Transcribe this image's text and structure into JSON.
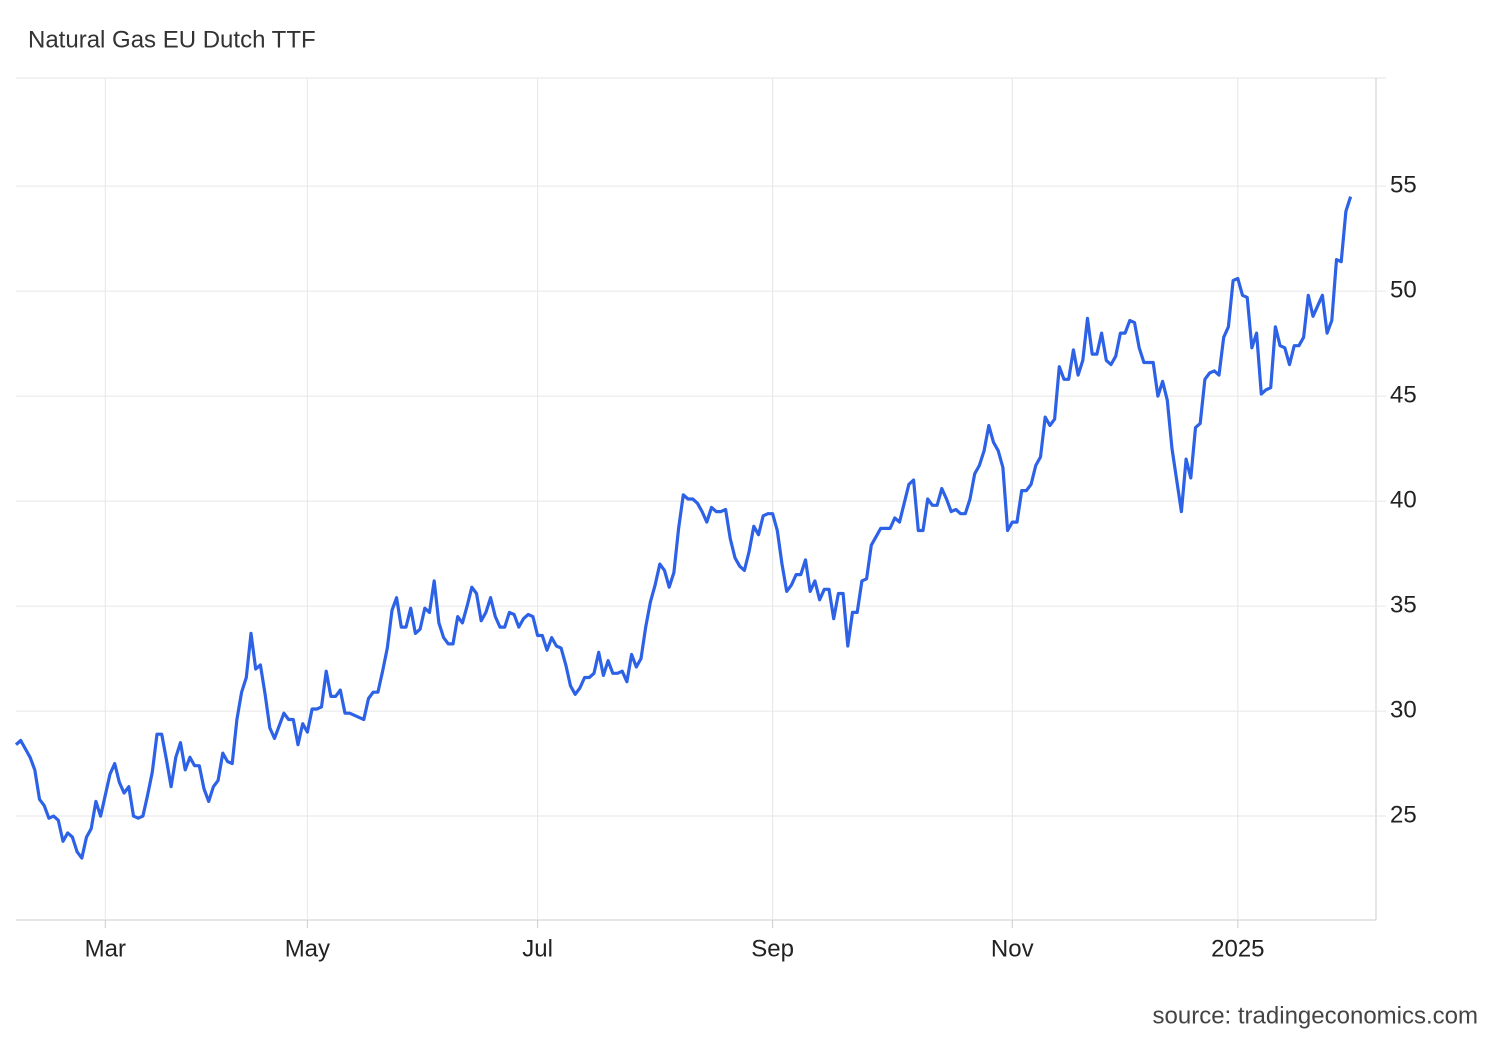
{
  "chart_data": {
    "type": "line",
    "title": "Natural Gas EU Dutch TTF",
    "source": "source: tradingeconomics.com",
    "series": [
      {
        "color": "#2d62e6",
        "values": [
          28.4,
          28.6,
          28.2,
          27.8,
          27.2,
          25.8,
          25.5,
          24.9,
          25.0,
          24.8,
          23.8,
          24.2,
          24.0,
          23.3,
          23.0,
          24.0,
          24.4,
          25.7,
          25.0,
          26.0,
          27.0,
          27.5,
          26.6,
          26.1,
          26.4,
          25.0,
          24.9,
          25.0,
          26.0,
          27.1,
          28.9,
          28.9,
          27.7,
          26.4,
          27.8,
          28.5,
          27.2,
          27.8,
          27.4,
          27.4,
          26.3,
          25.7,
          26.4,
          26.7,
          28.0,
          27.6,
          27.5,
          29.6,
          30.9,
          31.6,
          33.7,
          32.0,
          32.2,
          30.8,
          29.2,
          28.7,
          29.3,
          29.9,
          29.6,
          29.6,
          28.4,
          29.4,
          29.0,
          30.1,
          30.1,
          30.2,
          31.9,
          30.7,
          30.7,
          31.0,
          29.9,
          29.9,
          29.8,
          29.7,
          29.6,
          30.6,
          30.9,
          30.9,
          31.9,
          33.0,
          34.8,
          35.4,
          34.0,
          34.0,
          34.9,
          33.7,
          33.9,
          34.9,
          34.7,
          36.2,
          34.2,
          33.5,
          33.2,
          33.2,
          34.5,
          34.2,
          35.0,
          35.9,
          35.6,
          34.3,
          34.7,
          35.4,
          34.5,
          34.0,
          34.0,
          34.7,
          34.6,
          34.0,
          34.4,
          34.6,
          34.5,
          33.6,
          33.6,
          32.9,
          33.5,
          33.1,
          33.0,
          32.2,
          31.2,
          30.8,
          31.1,
          31.6,
          31.6,
          31.8,
          32.8,
          31.7,
          32.4,
          31.8,
          31.8,
          31.9,
          31.4,
          32.7,
          32.1,
          32.5,
          34.0,
          35.2,
          36.0,
          37.0,
          36.7,
          35.9,
          36.6,
          38.7,
          40.3,
          40.1,
          40.1,
          39.9,
          39.5,
          39.0,
          39.7,
          39.5,
          39.5,
          39.6,
          38.2,
          37.3,
          36.9,
          36.7,
          37.6,
          38.8,
          38.4,
          39.3,
          39.4,
          39.4,
          38.6,
          37.0,
          35.7,
          36.0,
          36.5,
          36.5,
          37.2,
          35.7,
          36.2,
          35.3,
          35.8,
          35.8,
          34.4,
          35.6,
          35.6,
          33.1,
          34.7,
          34.7,
          36.2,
          36.3,
          37.9,
          38.3,
          38.7,
          38.7,
          38.7,
          39.2,
          39.0,
          39.9,
          40.8,
          41.0,
          38.6,
          38.6,
          40.1,
          39.8,
          39.8,
          40.6,
          40.1,
          39.5,
          39.6,
          39.4,
          39.4,
          40.1,
          41.3,
          41.7,
          42.4,
          43.6,
          42.8,
          42.4,
          41.6,
          38.6,
          39.0,
          39.0,
          40.5,
          40.5,
          40.8,
          41.7,
          42.1,
          44.0,
          43.6,
          43.9,
          46.4,
          45.8,
          45.8,
          47.2,
          46.0,
          46.7,
          48.7,
          47.0,
          47.0,
          48.0,
          46.7,
          46.5,
          46.9,
          48.0,
          48.0,
          48.6,
          48.5,
          47.3,
          46.6,
          46.6,
          46.6,
          45.0,
          45.7,
          44.8,
          42.5,
          41.0,
          39.5,
          42.0,
          41.1,
          43.5,
          43.7,
          45.8,
          46.1,
          46.2,
          46.0,
          47.8,
          48.3,
          50.5,
          50.6,
          49.8,
          49.7,
          47.3,
          48.0,
          45.1,
          45.3,
          45.4,
          48.3,
          47.4,
          47.3,
          46.5,
          47.4,
          47.4,
          47.8,
          49.8,
          48.8,
          49.3,
          49.8,
          48.0,
          48.6,
          51.5,
          51.4,
          53.8,
          54.5
        ]
      }
    ],
    "xlim": [
      0,
      289.4
    ],
    "xticks": [
      {
        "value": 19,
        "label": "Mar"
      },
      {
        "value": 62,
        "label": "May"
      },
      {
        "value": 111,
        "label": "Jul"
      },
      {
        "value": 161,
        "label": "Sep"
      },
      {
        "value": 212,
        "label": "Nov"
      },
      {
        "value": 260,
        "label": "2025"
      }
    ],
    "ylim": [
      20.05,
      60.15
    ],
    "yticks": [
      25,
      30,
      35,
      40,
      45,
      50,
      55
    ],
    "grid": true
  }
}
